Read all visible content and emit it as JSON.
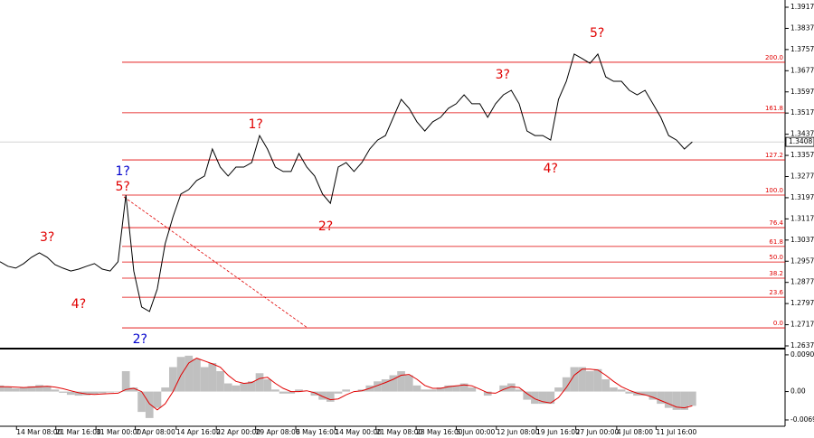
{
  "chart_data": [
    {
      "type": "line",
      "color": "#000000",
      "values": [
        1.2955,
        1.2938,
        1.2931,
        1.2948,
        1.2972,
        1.2989,
        1.2972,
        1.2944,
        1.2931,
        1.292,
        1.2927,
        1.2938,
        1.2948,
        1.2927,
        1.292,
        1.2955,
        1.3207,
        1.292,
        1.2784,
        1.2767,
        1.2852,
        1.3023,
        1.3125,
        1.3211,
        1.3228,
        1.3262,
        1.3279,
        1.3381,
        1.3313,
        1.3279,
        1.3313,
        1.3313,
        1.333,
        1.3432,
        1.3381,
        1.3313,
        1.3296,
        1.3296,
        1.3364,
        1.3313,
        1.3279,
        1.3211,
        1.3176,
        1.3313,
        1.333,
        1.3296,
        1.333,
        1.3381,
        1.3415,
        1.3432,
        1.3501,
        1.3569,
        1.3535,
        1.3484,
        1.3449,
        1.3484,
        1.3501,
        1.3535,
        1.3552,
        1.3586,
        1.3552,
        1.3552,
        1.3501,
        1.3552,
        1.3586,
        1.3603,
        1.3552,
        1.3449,
        1.3432,
        1.3432,
        1.3415,
        1.3569,
        1.3637,
        1.374,
        1.3723,
        1.3705,
        1.374,
        1.3654,
        1.3637,
        1.3637,
        1.3603,
        1.3586,
        1.3603,
        1.3552,
        1.3501,
        1.3432,
        1.3415,
        1.3381,
        1.3408
      ],
      "xlim": [
        0,
        99.8
      ],
      "xticks": [
        {
          "value": 2.1,
          "label": "14 Mar 08:00"
        },
        {
          "value": 7.1,
          "label": "21 Mar 16:00"
        },
        {
          "value": 12.2,
          "label": "31 Mar 00:00"
        },
        {
          "value": 17.2,
          "label": "7 Apr 08:00"
        },
        {
          "value": 22.4,
          "label": "14 Apr 16:00"
        },
        {
          "value": 27.5,
          "label": "22 Apr 00:00"
        },
        {
          "value": 32.5,
          "label": "29 Apr 08:00"
        },
        {
          "value": 37.6,
          "label": "6 May 16:00"
        },
        {
          "value": 42.6,
          "label": "14 May 00:00"
        },
        {
          "value": 47.8,
          "label": "21 May 08:00"
        },
        {
          "value": 52.9,
          "label": "28 May 16:00"
        },
        {
          "value": 58.0,
          "label": "5 Jun 00:00"
        },
        {
          "value": 63.1,
          "label": "12 Jun 08:00"
        },
        {
          "value": 68.2,
          "label": "19 Jun 16:00"
        },
        {
          "value": 73.2,
          "label": "27 Jun 00:00"
        },
        {
          "value": 78.4,
          "label": "4 Jul 08:00"
        },
        {
          "value": 83.4,
          "label": "11 Jul 16:00"
        }
      ],
      "ylim": [
        1.26302,
        1.39443
      ],
      "yticks": [
        1.3917,
        1.3837,
        1.3757,
        1.3677,
        1.3597,
        1.3517,
        1.3437,
        1.3357,
        1.3277,
        1.3197,
        1.3117,
        1.3037,
        1.2957,
        1.2877,
        1.2797,
        1.2717,
        1.2637
      ],
      "current_price": 1.3408,
      "fib_levels": [
        {
          "value": 1.2705,
          "label": "0.0"
        },
        {
          "value": 1.2821,
          "label": "23.6"
        },
        {
          "value": 1.2893,
          "label": "38.2"
        },
        {
          "value": 1.2954,
          "label": "50.0"
        },
        {
          "value": 1.3013,
          "label": "61.8"
        },
        {
          "value": 1.3084,
          "label": "76.4"
        },
        {
          "value": 1.3207,
          "label": "100.0"
        },
        {
          "value": 1.334,
          "label": "127.2"
        },
        {
          "value": 1.3518,
          "label": "161.8"
        },
        {
          "value": 1.3709,
          "label": "200.0"
        }
      ],
      "fib_color": "#e00000",
      "annotations": [
        {
          "text": "3?",
          "x": 6,
          "y": 1.3047,
          "color": "#e00000"
        },
        {
          "text": "4?",
          "x": 10,
          "y": 1.2794,
          "color": "#e00000"
        },
        {
          "text": "1?",
          "x": 15.6,
          "y": 1.3296,
          "color": "#0000cc"
        },
        {
          "text": "5?",
          "x": 15.6,
          "y": 1.3238,
          "color": "#e00000"
        },
        {
          "text": "2?",
          "x": 17.8,
          "y": 1.2661,
          "color": "#0000cc"
        },
        {
          "text": "1?",
          "x": 32.5,
          "y": 1.3473,
          "color": "#e00000"
        },
        {
          "text": "2?",
          "x": 41.4,
          "y": 1.3088,
          "color": "#e00000"
        },
        {
          "text": "3?",
          "x": 63.9,
          "y": 1.3661,
          "color": "#e00000"
        },
        {
          "text": "4?",
          "x": 70,
          "y": 1.3306,
          "color": "#e00000"
        },
        {
          "text": "5?",
          "x": 75.9,
          "y": 1.3818,
          "color": "#e00000"
        }
      ]
    },
    {
      "type": "bar",
      "color": "#c0c0c0",
      "signal_color": "#e00000",
      "values": [
        0.0015,
        0.0012,
        0.0008,
        0.001,
        0.0013,
        0.0016,
        0.0014,
        0.0005,
        -0.0003,
        -0.0008,
        -0.001,
        -0.0009,
        -0.0006,
        -0.0004,
        -0.0002,
        -0.0001,
        0.005,
        0.001,
        -0.005,
        -0.0065,
        -0.004,
        0.001,
        0.006,
        0.0085,
        0.0088,
        0.008,
        0.006,
        0.007,
        0.005,
        0.002,
        0.0015,
        0.002,
        0.0025,
        0.0045,
        0.003,
        0.0005,
        -0.0005,
        -0.0005,
        0.0005,
        0.0,
        -0.001,
        -0.002,
        -0.0025,
        -0.0005,
        0.0005,
        0.0,
        0.0005,
        0.0015,
        0.0025,
        0.003,
        0.004,
        0.005,
        0.004,
        0.0015,
        0.0005,
        0.0005,
        0.001,
        0.0015,
        0.0015,
        0.002,
        0.001,
        0.0,
        -0.001,
        0.0,
        0.0015,
        0.002,
        0.0005,
        -0.002,
        -0.003,
        -0.003,
        -0.003,
        0.001,
        0.0035,
        0.006,
        0.006,
        0.005,
        0.0055,
        0.003,
        0.001,
        0.0005,
        -0.0005,
        -0.001,
        -0.001,
        -0.002,
        -0.003,
        -0.004,
        -0.0045,
        -0.0045,
        -0.0035
      ],
      "signal": [
        0.0012,
        0.0012,
        0.0011,
        0.001,
        0.0011,
        0.0012,
        0.0013,
        0.0011,
        0.0007,
        0.0002,
        -0.0003,
        -0.0006,
        -0.0007,
        -0.0006,
        -0.0005,
        -0.0004,
        0.0005,
        0.0008,
        0.0,
        -0.003,
        -0.0045,
        -0.003,
        0.0,
        0.004,
        0.007,
        0.0082,
        0.0075,
        0.0068,
        0.006,
        0.004,
        0.0025,
        0.002,
        0.0022,
        0.0032,
        0.0035,
        0.002,
        0.0008,
        0.0,
        0.0,
        0.0002,
        -0.0003,
        -0.0012,
        -0.002,
        -0.0018,
        -0.0008,
        0.0,
        0.0002,
        0.0008,
        0.0015,
        0.0022,
        0.003,
        0.004,
        0.0042,
        0.003,
        0.0015,
        0.0008,
        0.0008,
        0.0012,
        0.0014,
        0.0016,
        0.0014,
        0.0006,
        -0.0003,
        -0.0004,
        0.0005,
        0.0012,
        0.001,
        -0.0005,
        -0.0018,
        -0.0025,
        -0.0028,
        -0.0015,
        0.001,
        0.004,
        0.0055,
        0.0055,
        0.0053,
        0.004,
        0.0025,
        0.0012,
        0.0003,
        -0.0004,
        -0.0008,
        -0.0014,
        -0.0022,
        -0.003,
        -0.0038,
        -0.004,
        -0.0035
      ],
      "ylim": [
        -0.00852,
        0.0101
      ],
      "yticks": [
        0.00901,
        {
          "value": 0,
          "label": "0.00"
        },
        -0.00697
      ]
    }
  ]
}
